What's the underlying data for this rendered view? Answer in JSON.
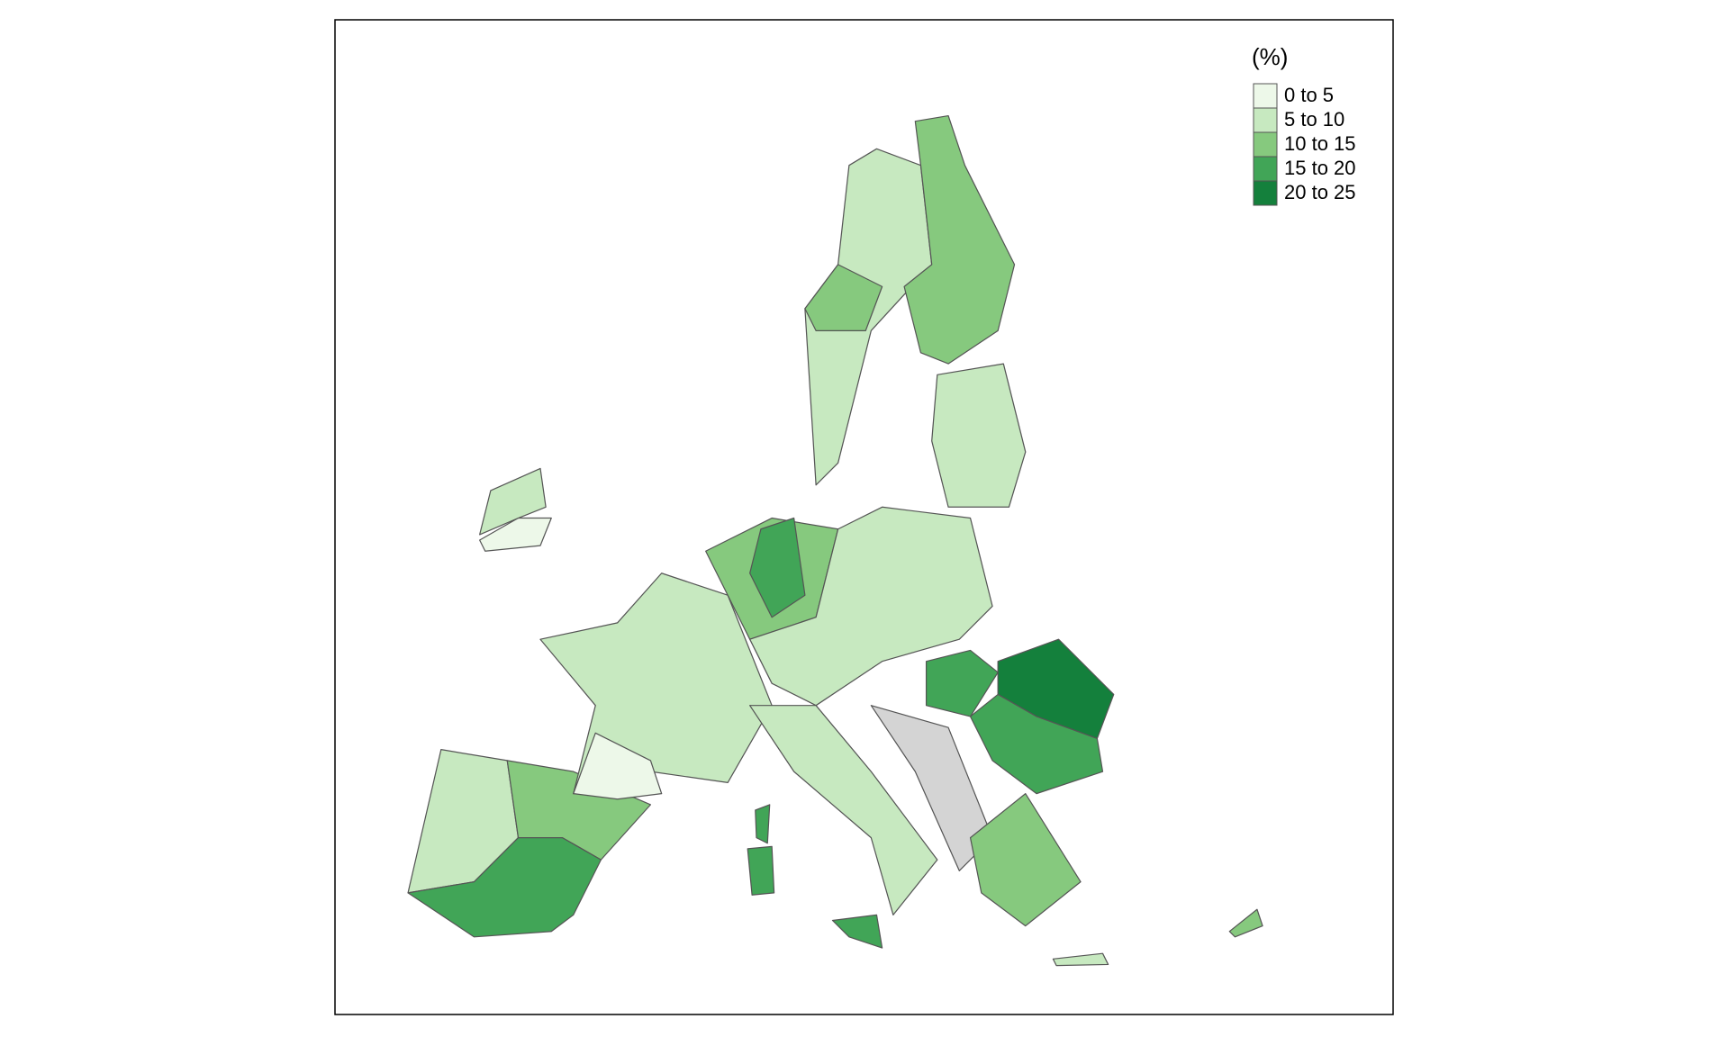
{
  "legend": {
    "title": "(%)",
    "items": [
      {
        "label": "0 to 5",
        "color": "#edf8e9"
      },
      {
        "label": "5 to 10",
        "color": "#c7e9c0"
      },
      {
        "label": "10 to 15",
        "color": "#86c97e"
      },
      {
        "label": "15 to 20",
        "color": "#41a557"
      },
      {
        "label": "20 to 25",
        "color": "#14803c"
      }
    ]
  }
}
